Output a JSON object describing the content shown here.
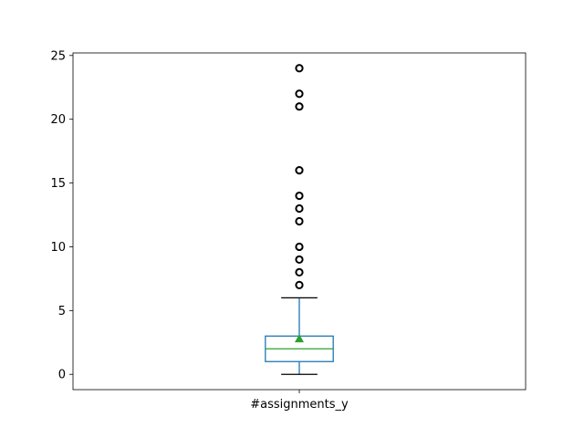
{
  "chart_data": {
    "type": "box",
    "categories": [
      "#assignments_y"
    ],
    "ylim": [
      -1.2,
      25.2
    ],
    "yticks": [
      0,
      5,
      10,
      15,
      20,
      25
    ],
    "grid": false,
    "boxes": [
      {
        "name": "#assignments_y",
        "whisker_low": 0,
        "q1": 1,
        "median": 2,
        "q3": 3,
        "whisker_high": 6,
        "mean": 2.8,
        "outliers": [
          7,
          8,
          9,
          10,
          12,
          13,
          14,
          16,
          21,
          22,
          24
        ]
      }
    ],
    "colors": {
      "box": "#1f77b4",
      "median": "#2ca02c",
      "mean": "#2ca02c",
      "whisker_cap": "#000000",
      "outlier": "#000000"
    }
  }
}
